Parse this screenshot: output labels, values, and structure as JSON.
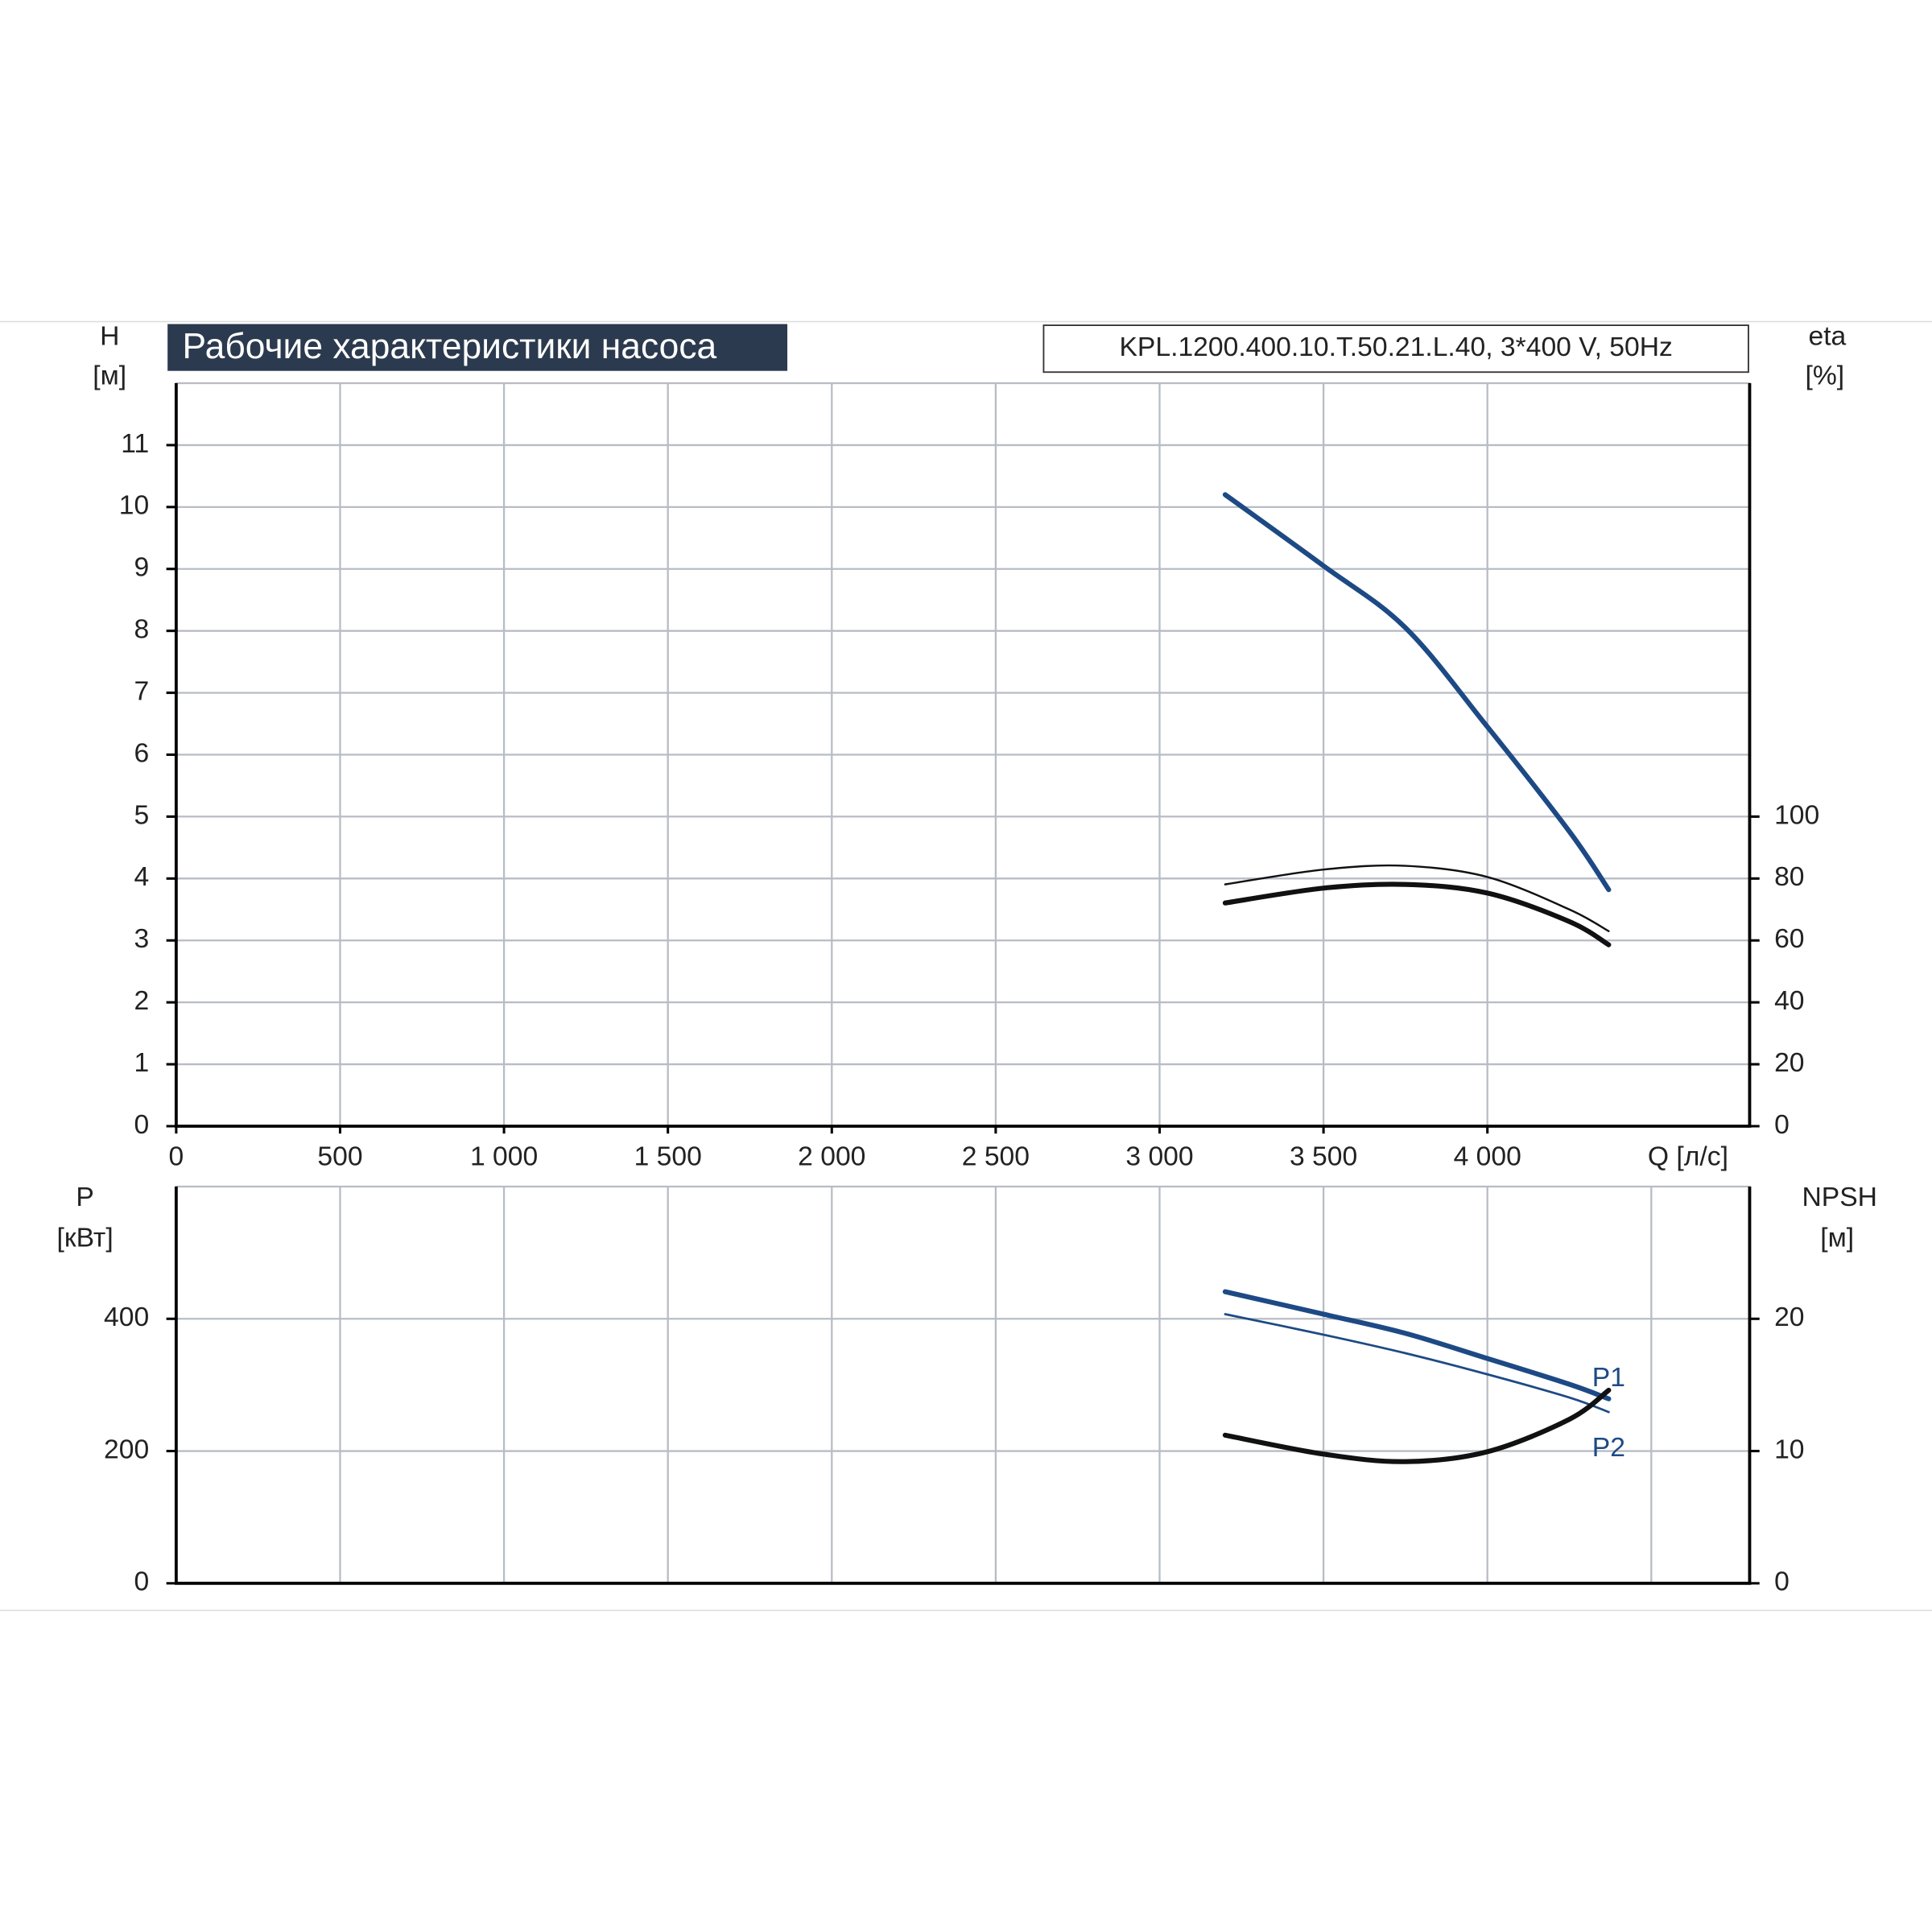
{
  "chart_data": [
    {
      "type": "line",
      "title": "Рабочие характеристики насоса",
      "model": "KPL.1200.400.10.T.50.21.L.40, 3*400 V, 50Hz",
      "ylabel": "H",
      "yunit": "[м]",
      "y2label": "eta",
      "y2unit": "[%]",
      "xlabel": "Q [л/с]",
      "xlim": [
        0,
        4800
      ],
      "xticks": [
        0,
        500,
        {
          "value": 1000,
          "label": "1 000"
        },
        {
          "value": 1500,
          "label": "1 500"
        },
        {
          "value": 2000,
          "label": "2 000"
        },
        {
          "value": 2500,
          "label": "2 500"
        },
        {
          "value": 3000,
          "label": "3 000"
        },
        {
          "value": 3500,
          "label": "3 500"
        },
        {
          "value": 4000,
          "label": "4 000"
        }
      ],
      "ylim": [
        0,
        12
      ],
      "yticks": [
        0,
        1,
        2,
        3,
        4,
        5,
        6,
        7,
        8,
        9,
        10,
        11
      ],
      "y2lim": [
        0,
        240
      ],
      "y2ticks": [
        0,
        20,
        40,
        60,
        80,
        100
      ],
      "grid": true,
      "x": [
        3200,
        3500,
        3750,
        4000,
        4250,
        4370
      ],
      "series": [
        {
          "color": "#1d4a85",
          "values": [
            10.2,
            9.05,
            8.05,
            6.45,
            4.76,
            3.82
          ]
        },
        {
          "color": "#111111",
          "axis": "y2",
          "width": 1.6,
          "values": [
            78.1,
            82.9,
            84.1,
            80.5,
            70,
            63
          ]
        },
        {
          "color": "#111111",
          "axis": "y2",
          "width": 4,
          "values": [
            72.1,
            76.9,
            78.1,
            75.3,
            66.1,
            58.6
          ]
        }
      ]
    },
    {
      "type": "line",
      "ylabel": "P",
      "yunit": "[кВт]",
      "y2label": "NPSH",
      "y2unit": "[м]",
      "xlim": [
        0,
        4800
      ],
      "xticks": [
        0,
        500,
        1000,
        1500,
        2000,
        2500,
        3000,
        3500,
        4000,
        4500
      ],
      "ylim": [
        0,
        600
      ],
      "yticks": [
        0,
        200,
        400
      ],
      "y2lim": [
        0,
        30
      ],
      "y2ticks": [
        0,
        10,
        20
      ],
      "grid": true,
      "x": [
        3200,
        3500,
        3750,
        4000,
        4250,
        4370
      ],
      "series": [
        {
          "name": "P1",
          "color": "#1d4a85",
          "width": 4,
          "values": [
            441,
            407,
            378,
            340,
            301,
            279
          ]
        },
        {
          "name": "P2",
          "color": "#1d4a85",
          "width": 1.8,
          "values": [
            407,
            376,
            348,
            316,
            281,
            259
          ]
        },
        {
          "color": "#111111",
          "axis": "y2",
          "width": 4,
          "values": [
            11.2,
            9.77,
            9.2,
            9.95,
            12.4,
            14.6
          ]
        }
      ]
    }
  ]
}
